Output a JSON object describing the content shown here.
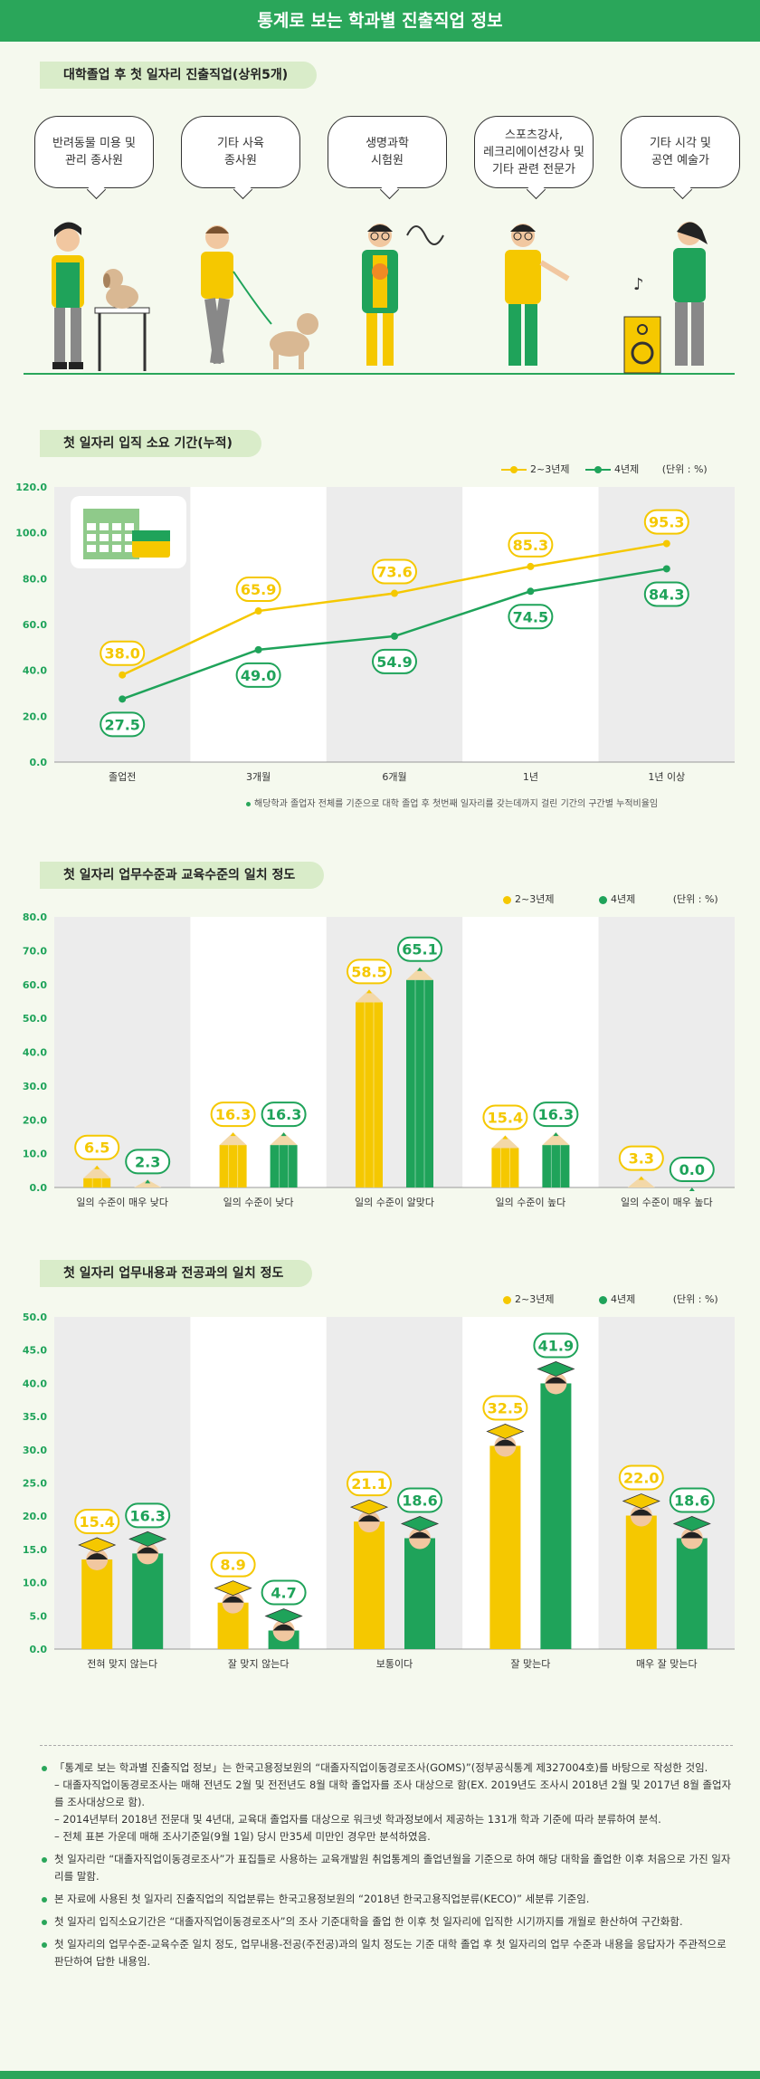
{
  "page_title": "통계로 보는 학과별 진출직업 정보",
  "section1": {
    "title": "대학졸업 후 첫 일자리 진출직업(상위5개)",
    "jobs": [
      "반려동물 미용 및\n관리 종사원",
      "기타 사육\n종사원",
      "생명과학\n시험원",
      "스포츠강사,\n레크리에이션강사 및\n기타 관련 전문가",
      "기타 시각 및\n공연 예술가"
    ]
  },
  "section2": {
    "title": "첫 일자리 입직 소요 기간(누적)",
    "legend": [
      "2~3년제",
      "4년제"
    ],
    "unit": "(단위 : %)",
    "footnote": "해당학과 졸업자 전체를 기준으로 대학 졸업 후 첫번째 일자리를 갖는데까지 걸린 기간의 구간별 누적비율임"
  },
  "section3": {
    "title": "첫 일자리 업무수준과 교육수준의 일치 정도",
    "legend": [
      "2~3년제",
      "4년제"
    ],
    "unit": "(단위 : %)"
  },
  "section4": {
    "title": "첫 일자리 업무내용과 전공과의 일치 정도",
    "legend": [
      "2~3년제",
      "4년제"
    ],
    "unit": "(단위 : %)"
  },
  "chart_data": [
    {
      "type": "line",
      "title": "첫 일자리 입직 소요 기간(누적)",
      "categories": [
        "졸업전",
        "3개월",
        "6개월",
        "1년",
        "1년 이상"
      ],
      "series": [
        {
          "name": "2~3년제",
          "values": [
            38.0,
            65.9,
            73.6,
            85.3,
            95.3
          ]
        },
        {
          "name": "4년제",
          "values": [
            27.5,
            49.0,
            54.9,
            74.5,
            84.3
          ]
        }
      ],
      "yticks": [
        "0.0",
        "20.0",
        "40.0",
        "60.0",
        "80.0",
        "100.0",
        "120.0"
      ],
      "ylim": [
        0,
        120
      ],
      "legend": "top-right"
    },
    {
      "type": "bar",
      "title": "첫 일자리 업무수준과 교육수준의 일치 정도",
      "categories": [
        "일의 수준이 매우 낮다",
        "일의 수준이 낮다",
        "일의 수준이 알맞다",
        "일의 수준이 높다",
        "일의 수준이 매우 높다"
      ],
      "series": [
        {
          "name": "2~3년제",
          "values": [
            6.5,
            16.3,
            58.5,
            15.4,
            3.3
          ]
        },
        {
          "name": "4년제",
          "values": [
            2.3,
            16.3,
            65.1,
            16.3,
            0.0
          ]
        }
      ],
      "yticks": [
        "0.0",
        "10.0",
        "20.0",
        "30.0",
        "40.0",
        "50.0",
        "60.0",
        "70.0",
        "80.0"
      ],
      "ylim": [
        0,
        80
      ],
      "legend": "top-right"
    },
    {
      "type": "bar",
      "title": "첫 일자리 업무내용과 전공과의 일치 정도",
      "categories": [
        "전혀 맞지 않는다",
        "잘 맞지 않는다",
        "보통이다",
        "잘 맞는다",
        "매우 잘 맞는다"
      ],
      "series": [
        {
          "name": "2~3년제",
          "values": [
            15.4,
            8.9,
            21.1,
            32.5,
            22.0
          ]
        },
        {
          "name": "4년제",
          "values": [
            16.3,
            4.7,
            18.6,
            41.9,
            18.6
          ]
        }
      ],
      "yticks": [
        "0.0",
        "5.0",
        "10.0",
        "15.0",
        "20.0",
        "25.0",
        "30.0",
        "35.0",
        "40.0",
        "45.0",
        "50.0"
      ],
      "ylim": [
        0,
        50
      ],
      "legend": "top-right"
    }
  ],
  "colors": {
    "series1": "#f5c800",
    "series2": "#1fa35a",
    "accent": "#2aa65a"
  },
  "notes": [
    {
      "text": "「통계로 보는 학과별 진출직업 정보」는 한국고용정보원의 “대졸자직업이동경로조사(GOMS)”(정부공식통계 제327004호)를 바탕으로 작성한 것임.",
      "subs": [
        "– 대졸자직업이동경로조사는 매해 전년도 2월 및 전전년도 8월 대학 졸업자를 조사 대상으로 함(EX. 2019년도 조사시 2018년 2월 및 2017년 8월 졸업자를 조사대상으로 함).",
        "– 2014년부터 2018년 전문대 및 4년대, 교육대 졸업자를 대상으로 워크넷 학과정보에서 제공하는 131개 학과 기준에 따라 분류하여 분석.",
        "– 전체 표본 가운데 매해 조사기준일(9월 1일) 당시 만35세 미만인 경우만 분석하였음."
      ]
    },
    {
      "text": "첫 일자리란 “대졸자직업이동경로조사”가 표집틀로 사용하는 교육개발원 취업통계의 졸업년월을 기준으로 하여 해당 대학을 졸업한 이후 처음으로 가진 일자리를 말함.",
      "subs": []
    },
    {
      "text": "본 자료에 사용된 첫 일자리 진출직업의 직업분류는 한국고용정보원의 “2018년 한국고용직업분류(KECO)” 세분류 기준임.",
      "subs": []
    },
    {
      "text": "첫 일자리 입직소요기간은 “대졸자직업이동경로조사”의 조사 기준대학을 졸업 한 이후 첫 일자리에 입직한 시기까지를 개월로 환산하여 구간화함.",
      "subs": []
    },
    {
      "text": "첫 일자리의 업무수준-교육수준 일치 정도, 업무내용-전공(주전공)과의 일치 정도는 기준 대학 졸업 후 첫 일자리의 업무 수준과 내용을 응답자가 주관적으로 판단하여 답한 내용임.",
      "subs": []
    }
  ]
}
